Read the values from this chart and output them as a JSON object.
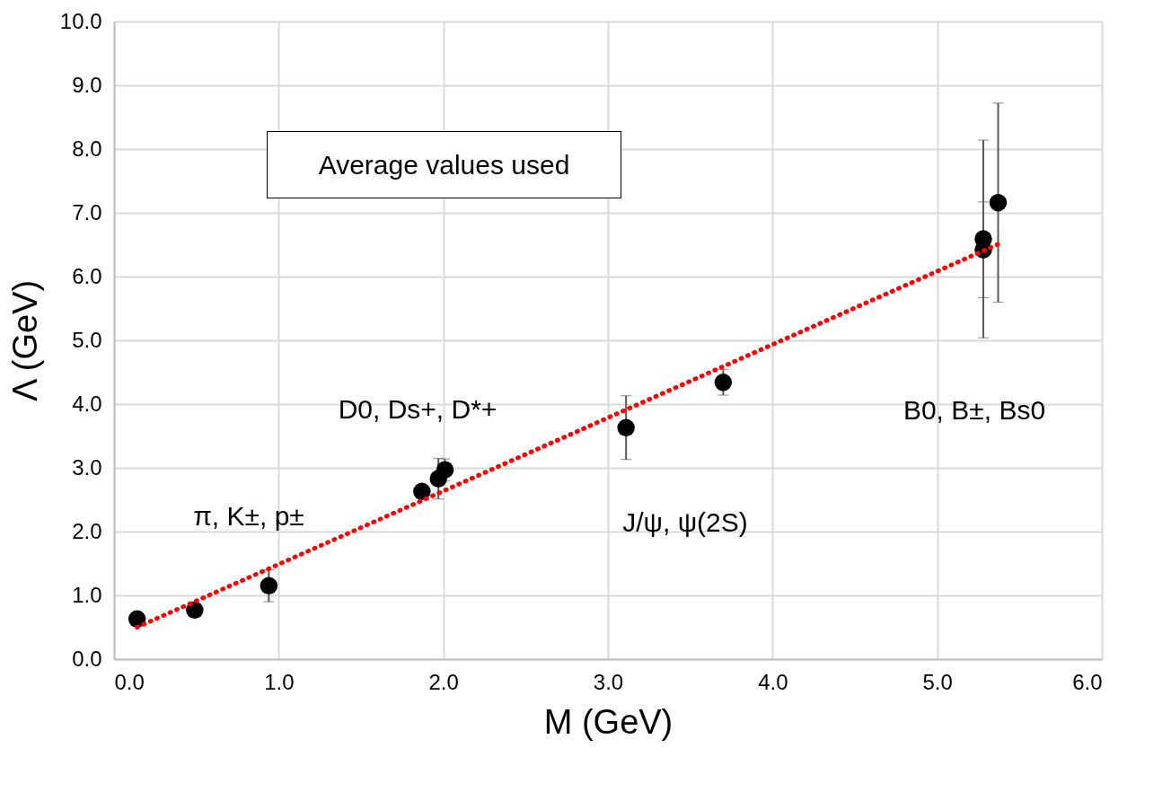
{
  "chart_data": {
    "type": "scatter",
    "xlabel": "M (GeV)",
    "ylabel": "Λ (GeV)",
    "xlim": [
      0,
      6
    ],
    "xticks": [
      {
        "value": 0,
        "label": "0.0"
      },
      {
        "value": 1,
        "label": "1.0"
      },
      {
        "value": 2,
        "label": "2.0"
      },
      {
        "value": 3,
        "label": "3.0"
      },
      {
        "value": 4,
        "label": "4.0"
      },
      {
        "value": 5,
        "label": "5.0"
      },
      {
        "value": 6,
        "label": "6.0"
      }
    ],
    "ylim": [
      0,
      10
    ],
    "yticks": [
      {
        "value": 0,
        "label": "0.0"
      },
      {
        "value": 1,
        "label": "1.0"
      },
      {
        "value": 2,
        "label": "2.0"
      },
      {
        "value": 3,
        "label": "3.0"
      },
      {
        "value": 4,
        "label": "4.0"
      },
      {
        "value": 5,
        "label": "5.0"
      },
      {
        "value": 6,
        "label": "6.0"
      },
      {
        "value": 7,
        "label": "7.0"
      },
      {
        "value": 8,
        "label": "8.0"
      },
      {
        "value": 9,
        "label": "9.0"
      },
      {
        "value": 10,
        "label": "10.0"
      }
    ],
    "grid": true,
    "marker": "circle",
    "series": [
      {
        "color": "#000000",
        "x": [
          0.14,
          0.49,
          0.94,
          1.87,
          1.97,
          2.01,
          3.11,
          3.7,
          5.28,
          5.28,
          5.37
        ],
        "values": [
          0.63,
          0.77,
          1.15,
          2.63,
          2.83,
          2.97,
          3.63,
          4.34,
          6.59,
          6.42,
          7.16
        ],
        "errors": [
          null,
          null,
          0.25,
          null,
          0.32,
          0.17,
          0.5,
          0.2,
          1.55,
          0.75,
          1.56
        ]
      },
      {
        "type": "line",
        "color": "#ff0000",
        "x": [
          0.14,
          5.38
        ],
        "values": [
          0.5,
          6.52
        ],
        "line_style": "dotted",
        "marker": "none"
      }
    ],
    "annotations": [
      "Average values used",
      "π, K±, p±",
      "D0, Ds+, D*+",
      "J/ψ, ψ(2S)",
      "B0, B±, Bs0"
    ]
  }
}
